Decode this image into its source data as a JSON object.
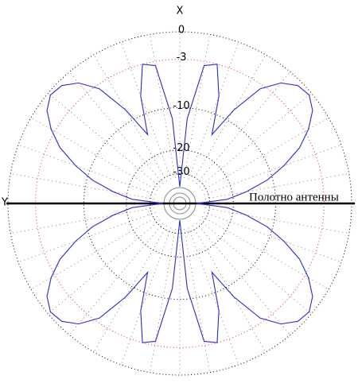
{
  "chart_data": {
    "type": "polar",
    "x_label": "X",
    "y_label": "Y",
    "annotation": "Полотно антенны",
    "rscale": "arrl-log",
    "rlim": [
      -40,
      0
    ],
    "rticks": [
      0,
      -3,
      -10,
      -20,
      -30
    ],
    "rtick_colors": [
      "#000000",
      "#e03030",
      "#000000",
      "#000000",
      "#000000"
    ],
    "grid": true,
    "series": [
      {
        "color": "#2b2bd0",
        "theta": [
          0,
          5,
          10,
          15,
          20,
          25,
          30,
          35,
          40,
          45,
          50,
          55,
          60,
          65,
          70,
          75,
          80,
          85,
          90,
          95,
          100,
          105,
          110,
          115,
          120,
          125,
          130,
          135,
          140,
          145,
          150,
          155,
          160,
          165,
          170,
          175,
          180,
          185,
          190,
          195,
          200,
          205,
          210,
          215,
          220,
          225,
          230,
          235,
          240,
          245,
          250,
          255,
          260,
          265,
          270,
          275,
          280,
          285,
          290,
          295,
          300,
          305,
          310,
          315,
          320,
          325,
          330,
          335,
          340,
          345,
          350,
          355
        ],
        "values": [
          -40,
          -12,
          -3.5,
          -3,
          -7,
          -14,
          -8,
          -3.5,
          -1.5,
          -0.5,
          -0.3,
          -1,
          -2.5,
          -4.5,
          -7.5,
          -11,
          -16,
          -22,
          -40,
          -22,
          -16,
          -11,
          -7.5,
          -4.5,
          -2.5,
          -1,
          -0.3,
          -0.5,
          -1.5,
          -3.5,
          -8,
          -14,
          -7,
          -3,
          -3.5,
          -12,
          -40,
          -12,
          -3.5,
          -3,
          -7,
          -14,
          -8,
          -3.5,
          -1.5,
          -0.5,
          -0.3,
          -1,
          -2.5,
          -4.5,
          -7.5,
          -11,
          -16,
          -22,
          -40,
          -22,
          -16,
          -11,
          -7.5,
          -4.5,
          -2.5,
          -1,
          -0.3,
          -0.5,
          -1.5,
          -3.5,
          -8,
          -14,
          -7,
          -3,
          -3.5,
          -12
        ]
      }
    ]
  }
}
